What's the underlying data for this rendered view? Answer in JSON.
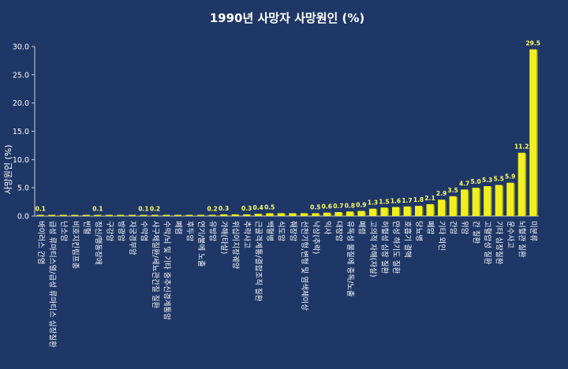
{
  "chart_data": {
    "type": "bar",
    "title": "1990년 사망자 사망원인 (%)",
    "xlabel": "",
    "ylabel": "사망원인 (%)",
    "ylim": [
      0,
      30
    ],
    "yticks": [
      "0.0",
      "5.0",
      "10.0",
      "15.0",
      "20.0",
      "25.0",
      "30.0"
    ],
    "grid": false,
    "legend": "none",
    "categories": [
      "바이러스 간염",
      "급성 류마티스열/급성 류마티스 심장질환",
      "난소암",
      "비호지킨림프종",
      "빈혈",
      "정신/행동장애",
      "구강암",
      "방광암",
      "자궁경부암",
      "수막염",
      "사구체질환/세뇨관간질 질환",
      "수막/뇌 및 기타 중추신경계통암",
      "폐렴",
      "후두암",
      "연기/불에 노출",
      "유방암",
      "가해(타살)",
      "위십이지장궤양",
      "추락사고",
      "근골격계통/결합조직 질환",
      "백혈병",
      "식도암",
      "췌장암",
      "선천기형,변형 및 염색체이상",
      "낙상(추락)",
      "익사",
      "대장암",
      "유독성 물질에 중독/노출",
      "폐렴",
      "고의적 자해(자살)",
      "허혈성 심장 질환",
      "만성 하기도 질환",
      "호흡기 결핵",
      "당뇨병",
      "폐암",
      "기타 외인",
      "간암",
      "위암",
      "간 질환",
      "고혈압성 질환",
      "기타 심장질환",
      "운수사고",
      "뇌혈관 질환",
      "미분류"
    ],
    "values": [
      0.1,
      0.1,
      0.1,
      0.1,
      0.1,
      0.1,
      0.1,
      0.1,
      0.1,
      0.1,
      0.2,
      0.2,
      0.2,
      0.2,
      0.2,
      0.2,
      0.3,
      0.3,
      0.3,
      0.4,
      0.5,
      0.5,
      0.5,
      0.5,
      0.5,
      0.6,
      0.7,
      0.8,
      0.9,
      1.3,
      1.5,
      1.6,
      1.7,
      1.8,
      2.1,
      2.9,
      3.5,
      4.7,
      5.0,
      5.3,
      5.5,
      5.9,
      11.2,
      29.5
    ],
    "data_labels": [
      "0.1",
      "",
      "",
      "",
      "",
      "0.1",
      "",
      "",
      "",
      "0.1",
      "0.2",
      "",
      "",
      "",
      "",
      "0.2",
      "0.3",
      "",
      "0.3",
      "0.4",
      "0.5",
      "",
      "",
      "",
      "0.5",
      "0.6",
      "0.7",
      "0.8",
      "0.9",
      "1.3",
      "1.5",
      "1.6",
      "1.7",
      "1.8",
      "2.1",
      "2.9",
      "3.5",
      "4.7",
      "5.0",
      "5.3",
      "5.5",
      "5.9",
      "11.2",
      "29.5"
    ],
    "colors": {
      "background": "#1f3766",
      "bar": "#f2ef1e",
      "bar_shadow": "#9a9810",
      "text": "#ffffff",
      "label": "#ffff66",
      "axis": "#c8cfdc"
    }
  }
}
